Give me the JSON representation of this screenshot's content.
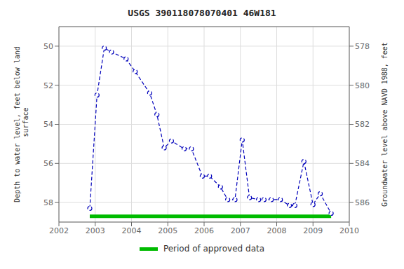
{
  "chart_data": {
    "type": "line",
    "title": "USGS 390118078070401 46W181",
    "y_label": "Depth to water level, feet below land\n surface",
    "y2_label": "Groundwater level above NAVD 1988, feet",
    "x": [
      2002.85,
      2003.05,
      2003.25,
      2003.45,
      2003.85,
      2004.1,
      2004.5,
      2004.7,
      2004.9,
      2005.1,
      2005.45,
      2005.65,
      2005.95,
      2006.15,
      2006.45,
      2006.65,
      2006.85,
      2007.05,
      2007.25,
      2007.5,
      2007.65,
      2007.85,
      2008.1,
      2008.35,
      2008.5,
      2008.75,
      2009.0,
      2009.2,
      2009.5
    ],
    "series": [
      {
        "values": [
          58.3,
          52.5,
          50.1,
          50.3,
          50.65,
          51.3,
          52.4,
          53.5,
          55.2,
          54.85,
          55.25,
          55.25,
          56.65,
          56.65,
          57.2,
          57.85,
          57.85,
          54.8,
          57.75,
          57.85,
          57.85,
          57.85,
          57.85,
          58.15,
          58.15,
          55.9,
          58.1,
          57.55,
          58.55
        ],
        "color": "#0000bb",
        "marker": "circle",
        "line_style": "dashed"
      }
    ],
    "xlim": [
      2002,
      2010
    ],
    "xticks": [
      2002,
      2003,
      2004,
      2005,
      2006,
      2007,
      2008,
      2009,
      2010
    ],
    "ylim": [
      59.0,
      49.0
    ],
    "yticks": [
      50.0,
      52.0,
      54.0,
      56.0,
      58.0
    ],
    "y2lim": [
      587.0,
      577.0
    ],
    "y2ticks": [
      586.0,
      584.0,
      582.0,
      580.0,
      578.0
    ],
    "grid": true,
    "period": {
      "name": "Period of approved data",
      "color": "#00bb00",
      "x": [
        2002.85,
        2009.5
      ]
    }
  }
}
